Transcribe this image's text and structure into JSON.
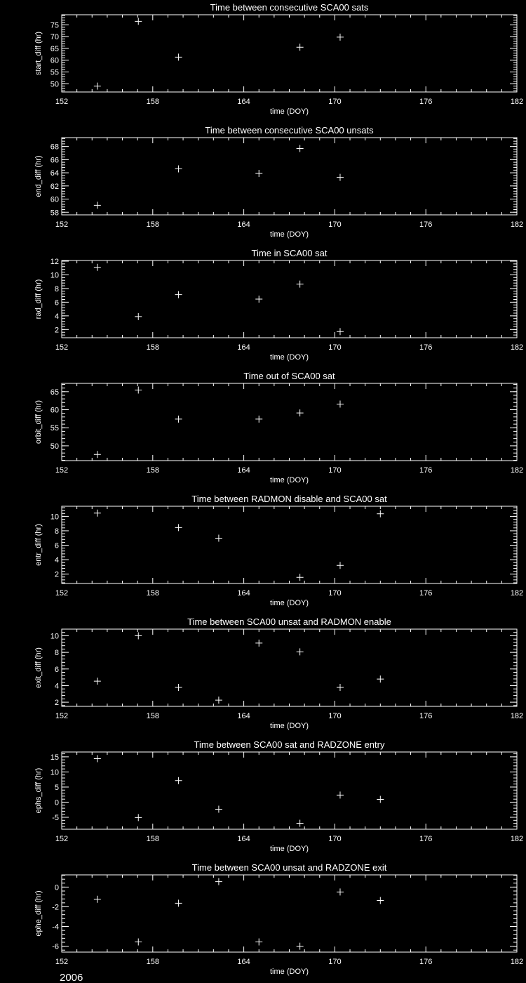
{
  "colors": {
    "background": "#000000",
    "foreground": "#ffffff"
  },
  "footer_label": "2006",
  "chart_data": [
    {
      "type": "scatter",
      "title": "Time between consecutive SCA00 sats",
      "xlabel": "time (DOY)",
      "ylabel": "start_diff (hr)",
      "xlim": [
        152,
        182
      ],
      "xticks": [
        152,
        158,
        164,
        170,
        176,
        182
      ],
      "ylim": [
        46.5,
        79.3
      ],
      "yticks": [
        50,
        55,
        60,
        65,
        70,
        75
      ],
      "x": [
        154.35,
        157.05,
        159.7,
        167.7,
        170.35
      ],
      "y": [
        49.0,
        76.5,
        61.3,
        65.5,
        69.8
      ],
      "marker": "plus"
    },
    {
      "type": "scatter",
      "title": "Time between consecutive SCA00 unsats",
      "xlabel": "time (DOY)",
      "ylabel": "end_diff (hr)",
      "xlim": [
        152,
        182
      ],
      "xticks": [
        152,
        158,
        164,
        170,
        176,
        182
      ],
      "ylim": [
        57.6,
        69.35
      ],
      "yticks": [
        58,
        60,
        62,
        64,
        66,
        68
      ],
      "x": [
        154.35,
        159.7,
        165.0,
        167.7,
        170.35
      ],
      "y": [
        59.05,
        64.6,
        63.9,
        67.7,
        63.3
      ],
      "marker": "plus"
    },
    {
      "type": "scatter",
      "title": "Time in SCA00 sat",
      "xlabel": "time (DOY)",
      "ylabel": "rad_diff (hr)",
      "xlim": [
        152,
        182
      ],
      "xticks": [
        152,
        158,
        164,
        170,
        176,
        182
      ],
      "ylim": [
        0.8,
        12.1
      ],
      "yticks": [
        2,
        4,
        6,
        8,
        10,
        12
      ],
      "x": [
        154.35,
        157.05,
        159.7,
        165.0,
        167.7,
        170.35
      ],
      "y": [
        11.1,
        3.9,
        7.1,
        6.45,
        8.65,
        1.7
      ],
      "marker": "plus"
    },
    {
      "type": "scatter",
      "title": "Time out of SCA00 sat",
      "xlabel": "time (DOY)",
      "ylabel": "orbit_diff (hr)",
      "xlim": [
        152,
        182
      ],
      "xticks": [
        152,
        158,
        164,
        170,
        176,
        182
      ],
      "ylim": [
        45.9,
        67.3
      ],
      "yticks": [
        50,
        55,
        60,
        65
      ],
      "x": [
        154.35,
        157.05,
        159.7,
        165.0,
        167.7,
        170.35
      ],
      "y": [
        47.6,
        65.45,
        57.4,
        57.4,
        59.1,
        61.55
      ],
      "marker": "plus"
    },
    {
      "type": "scatter",
      "title": "Time between RADMON disable and SCA00 sat",
      "xlabel": "time (DOY)",
      "ylabel": "entr_diff (hr)",
      "xlim": [
        152,
        182
      ],
      "xticks": [
        152,
        158,
        164,
        170,
        176,
        182
      ],
      "ylim": [
        0.7,
        11.4
      ],
      "yticks": [
        2,
        4,
        6,
        8,
        10
      ],
      "x": [
        154.35,
        159.7,
        162.35,
        167.7,
        170.35,
        173.0
      ],
      "y": [
        10.45,
        8.45,
        6.97,
        1.55,
        3.2,
        10.35
      ],
      "marker": "plus"
    },
    {
      "type": "scatter",
      "title": "Time between SCA00 unsat and RADMON enable",
      "xlabel": "time (DOY)",
      "ylabel": "exit_diff (hr)",
      "xlim": [
        152,
        182
      ],
      "xticks": [
        152,
        158,
        164,
        170,
        176,
        182
      ],
      "ylim": [
        1.5,
        10.8
      ],
      "yticks": [
        2,
        4,
        6,
        8,
        10
      ],
      "x": [
        154.35,
        157.05,
        159.7,
        162.35,
        165.0,
        167.7,
        170.35,
        173.0
      ],
      "y": [
        4.53,
        10.0,
        3.78,
        2.25,
        9.12,
        8.06,
        3.78,
        4.79
      ],
      "marker": "plus"
    },
    {
      "type": "scatter",
      "title": "Time between SCA00 sat and RADZONE entry",
      "xlabel": "time (DOY)",
      "ylabel": "ephs_diff (hr)",
      "xlim": [
        152,
        182
      ],
      "xticks": [
        152,
        158,
        164,
        170,
        176,
        182
      ],
      "ylim": [
        -8.95,
        16.6
      ],
      "yticks": [
        -5,
        0,
        5,
        10,
        15
      ],
      "x": [
        154.35,
        157.05,
        159.7,
        162.35,
        167.7,
        170.35,
        173.0
      ],
      "y": [
        14.4,
        -5.1,
        7.13,
        -2.33,
        -6.98,
        2.33,
        0.93
      ],
      "marker": "plus"
    },
    {
      "type": "scatter",
      "title": "Time between SCA00 unsat and RADZONE exit",
      "xlabel": "time (DOY)",
      "ylabel": "ephe_diff (hr)",
      "xlim": [
        152,
        182
      ],
      "xticks": [
        152,
        158,
        164,
        170,
        176,
        182
      ],
      "ylim": [
        -6.6,
        1.24
      ],
      "yticks": [
        -6,
        -4,
        -2,
        0
      ],
      "x": [
        154.35,
        157.05,
        159.7,
        162.35,
        165.0,
        167.7,
        170.35,
        173.0
      ],
      "y": [
        -1.24,
        -5.57,
        -1.64,
        0.55,
        -5.57,
        -6.0,
        -0.5,
        -1.36
      ],
      "marker": "plus"
    }
  ]
}
